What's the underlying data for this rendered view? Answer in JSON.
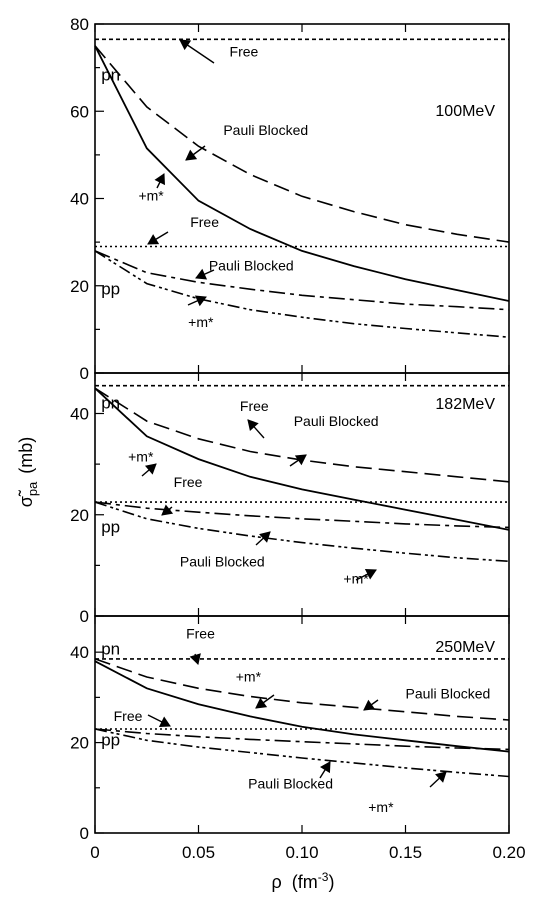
{
  "figure": {
    "ylabel": "σ̃",
    "ylabel_sub": "pa",
    "ylabel_unit": "(mb)",
    "xlabel": "ρ",
    "xlabel_unit": "(fm",
    "xlabel_exp": "-3",
    "xlabel_close": ")"
  },
  "chart_data": [
    {
      "type": "line",
      "energy_label": "100MeV",
      "xlim": [
        0,
        0.2
      ],
      "ylim": [
        0,
        80
      ],
      "xticks": [
        "0",
        "0.05",
        "0.10",
        "0.15",
        "0.20"
      ],
      "yticks": [
        "0",
        "20",
        "40",
        "60",
        "80"
      ],
      "x": [
        0,
        0.025,
        0.05,
        0.075,
        0.1,
        0.125,
        0.15,
        0.175,
        0.2
      ],
      "series": [
        {
          "group": "pn",
          "kind": "free",
          "values": [
            76.5,
            76.5,
            76.5,
            76.5,
            76.5,
            76.5,
            76.5,
            76.5,
            76.5
          ]
        },
        {
          "group": "pn",
          "kind": "pauli",
          "values": [
            75,
            61,
            52,
            45.5,
            40.5,
            37,
            34,
            31.8,
            30
          ]
        },
        {
          "group": "pn",
          "kind": "mstar",
          "values": [
            75,
            51.5,
            39.5,
            33,
            28,
            24.5,
            21.5,
            19,
            16.5
          ]
        },
        {
          "group": "pp",
          "kind": "free",
          "values": [
            29,
            29,
            29,
            29,
            29,
            29,
            29,
            29,
            29
          ]
        },
        {
          "group": "pp",
          "kind": "pauli",
          "values": [
            28,
            23,
            20.8,
            19.2,
            17.8,
            16.8,
            15.8,
            15.2,
            14.5
          ]
        },
        {
          "group": "pp",
          "kind": "mstar",
          "values": [
            28,
            20.5,
            17,
            14.5,
            12.8,
            11.3,
            10.2,
            9.2,
            8.2
          ]
        }
      ],
      "annotations": [
        {
          "text": "pn",
          "x": 0.003,
          "y": 67
        },
        {
          "text": "pp",
          "x": 0.003,
          "y": 18
        },
        {
          "text": "Free",
          "x": 0.065,
          "y": 72.5
        },
        {
          "text": "Pauli Blocked",
          "x": 0.062,
          "y": 54.5
        },
        {
          "text": "+m*",
          "x": 0.021,
          "y": 39.5
        },
        {
          "text": "Free",
          "x": 0.046,
          "y": 33.5
        },
        {
          "text": "Pauli Blocked",
          "x": 0.055,
          "y": 23.5
        },
        {
          "text": "+m*",
          "x": 0.045,
          "y": 10.5
        }
      ]
    },
    {
      "type": "line",
      "energy_label": "182MeV",
      "xlim": [
        0,
        0.2
      ],
      "ylim": [
        0,
        48
      ],
      "xticks": [
        "0",
        "0.05",
        "0.10",
        "0.15",
        "0.20"
      ],
      "yticks": [
        "0",
        "20",
        "40"
      ],
      "x": [
        0,
        0.025,
        0.05,
        0.075,
        0.1,
        0.125,
        0.15,
        0.175,
        0.2
      ],
      "series": [
        {
          "group": "pn",
          "kind": "free",
          "values": [
            45.5,
            45.5,
            45.5,
            45.5,
            45.5,
            45.5,
            45.5,
            45.5,
            45.5
          ]
        },
        {
          "group": "pn",
          "kind": "pauli",
          "values": [
            45,
            38.5,
            35,
            32.5,
            30.8,
            29.5,
            28.5,
            27.5,
            26.5
          ]
        },
        {
          "group": "pn",
          "kind": "mstar",
          "values": [
            45,
            35.5,
            31,
            27.5,
            25,
            23,
            21,
            19,
            17
          ]
        },
        {
          "group": "pp",
          "kind": "free",
          "values": [
            22.5,
            22.5,
            22.5,
            22.5,
            22.5,
            22.5,
            22.5,
            22.5,
            22.5
          ]
        },
        {
          "group": "pp",
          "kind": "pauli",
          "values": [
            22.5,
            21.3,
            20.5,
            19.8,
            19.2,
            18.7,
            18.2,
            17.8,
            17.5
          ]
        },
        {
          "group": "pp",
          "kind": "mstar",
          "values": [
            22.5,
            19.2,
            17.3,
            15.8,
            14.5,
            13.4,
            12.4,
            11.5,
            10.8
          ]
        }
      ],
      "annotations": [
        {
          "text": "pn",
          "x": 0.003,
          "y": 41
        },
        {
          "text": "pp",
          "x": 0.003,
          "y": 16.5
        },
        {
          "text": "Free",
          "x": 0.07,
          "y": 40.5
        },
        {
          "text": "Pauli Blocked",
          "x": 0.096,
          "y": 37.5
        },
        {
          "text": "+m*",
          "x": 0.016,
          "y": 30.5
        },
        {
          "text": "Free",
          "x": 0.038,
          "y": 25.5
        },
        {
          "text": "Pauli Blocked",
          "x": 0.041,
          "y": 9.8
        },
        {
          "text": "+m*",
          "x": 0.12,
          "y": 6.4
        }
      ]
    },
    {
      "type": "line",
      "energy_label": "250MeV",
      "xlim": [
        0,
        0.2
      ],
      "ylim": [
        0,
        48
      ],
      "xticks": [
        "0",
        "0.05",
        "0.10",
        "0.15",
        "0.20"
      ],
      "yticks": [
        "0",
        "20",
        "40"
      ],
      "x": [
        0,
        0.025,
        0.05,
        0.075,
        0.1,
        0.125,
        0.15,
        0.175,
        0.2
      ],
      "series": [
        {
          "group": "pn",
          "kind": "free",
          "values": [
            38.5,
            38.5,
            38.5,
            38.5,
            38.5,
            38.5,
            38.5,
            38.5,
            38.5
          ]
        },
        {
          "group": "pn",
          "kind": "pauli",
          "values": [
            38.5,
            34.5,
            32,
            30.2,
            28.8,
            27.8,
            26.8,
            25.8,
            25
          ]
        },
        {
          "group": "pn",
          "kind": "mstar",
          "values": [
            38,
            32,
            28.5,
            25.8,
            23.5,
            21.8,
            20.5,
            19.2,
            18
          ]
        },
        {
          "group": "pp",
          "kind": "free",
          "values": [
            23,
            23,
            23,
            23,
            23,
            23,
            23,
            23,
            23
          ]
        },
        {
          "group": "pp",
          "kind": "pauli",
          "values": [
            23,
            22,
            21.3,
            20.7,
            20.2,
            19.7,
            19.2,
            18.8,
            18.5
          ]
        },
        {
          "group": "pp",
          "kind": "mstar",
          "values": [
            23,
            20.5,
            19,
            17.8,
            16.6,
            15.5,
            14.4,
            13.4,
            12.5
          ]
        }
      ],
      "annotations": [
        {
          "text": "pn",
          "x": 0.003,
          "y": 39.5
        },
        {
          "text": "pp",
          "x": 0.003,
          "y": 19.3
        },
        {
          "text": "Free",
          "x": 0.044,
          "y": 43
        },
        {
          "text": "Free",
          "x": 0.009,
          "y": 24.8
        },
        {
          "text": "+m*",
          "x": 0.068,
          "y": 33.5
        },
        {
          "text": "Pauli Blocked",
          "x": 0.15,
          "y": 29.8
        },
        {
          "text": "Pauli Blocked",
          "x": 0.074,
          "y": 9.8
        },
        {
          "text": "+m*",
          "x": 0.132,
          "y": 4.6
        }
      ]
    }
  ]
}
